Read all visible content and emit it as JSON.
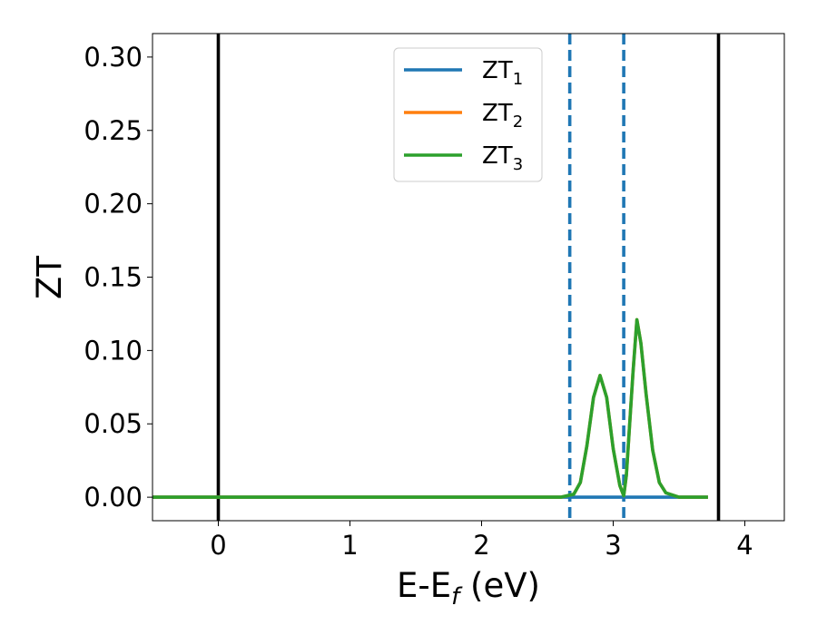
{
  "chart_data": {
    "type": "line",
    "xlabel": {
      "main": "E-E",
      "sub": "f",
      "suffix": " (eV)"
    },
    "ylabel": "ZT",
    "xlim": [
      -0.5,
      4.3
    ],
    "ylim": [
      -0.016,
      0.316
    ],
    "x_ticks": [
      0,
      1,
      2,
      3,
      4
    ],
    "x_tick_labels": [
      "0",
      "1",
      "2",
      "3",
      "4"
    ],
    "y_ticks": [
      0.0,
      0.05,
      0.1,
      0.15,
      0.2,
      0.25,
      0.3
    ],
    "y_tick_labels": [
      "0.00",
      "0.05",
      "0.10",
      "0.15",
      "0.20",
      "0.25",
      "0.30"
    ],
    "grid": false,
    "legend_position": "upper-center",
    "series": [
      {
        "name": "ZT",
        "sub": "1",
        "color": "#1f77b4",
        "x": [
          -0.5,
          3.72
        ],
        "y": [
          0,
          0
        ]
      },
      {
        "name": "ZT",
        "sub": "2",
        "color": "#ff7f0e",
        "x": [
          -0.5,
          2.6,
          2.7,
          2.75,
          2.8,
          2.85,
          2.9,
          2.95,
          3.0,
          3.05,
          3.08,
          3.1,
          3.15,
          3.18,
          3.21,
          3.25,
          3.3,
          3.35,
          3.4,
          3.5,
          3.72
        ],
        "y": [
          0,
          0,
          0.002,
          0.01,
          0.035,
          0.068,
          0.083,
          0.068,
          0.033,
          0.008,
          0.001,
          0.015,
          0.085,
          0.121,
          0.105,
          0.07,
          0.032,
          0.01,
          0.003,
          0,
          0
        ]
      },
      {
        "name": "ZT",
        "sub": "3",
        "color": "#2ca02c",
        "x": [
          -0.5,
          2.6,
          2.7,
          2.75,
          2.8,
          2.85,
          2.9,
          2.95,
          3.0,
          3.05,
          3.08,
          3.1,
          3.15,
          3.18,
          3.21,
          3.25,
          3.3,
          3.35,
          3.4,
          3.5,
          3.72
        ],
        "y": [
          0,
          0,
          0.002,
          0.01,
          0.035,
          0.068,
          0.083,
          0.068,
          0.033,
          0.008,
          0.001,
          0.015,
          0.085,
          0.121,
          0.105,
          0.07,
          0.032,
          0.01,
          0.003,
          0,
          0
        ]
      }
    ],
    "vertical_lines": [
      {
        "x": 0,
        "color": "#000000",
        "style": "solid"
      },
      {
        "x": 3.8,
        "color": "#000000",
        "style": "solid"
      },
      {
        "x": 2.67,
        "color": "#1f77b4",
        "style": "dashed"
      },
      {
        "x": 3.08,
        "color": "#1f77b4",
        "style": "dashed"
      }
    ]
  }
}
